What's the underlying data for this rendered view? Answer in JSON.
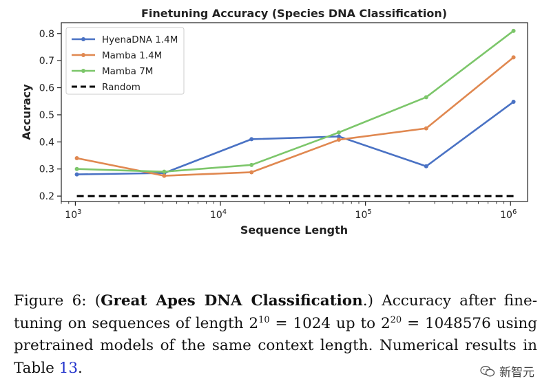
{
  "chart_data": {
    "type": "line",
    "title": "Finetuning Accuracy (Species DNA Classification)",
    "xlabel": "Sequence Length",
    "ylabel": "Accuracy",
    "xscale": "log",
    "xlim": [
      800,
      1310720
    ],
    "ylim": [
      0.18,
      0.84
    ],
    "x_ticks": [
      1000,
      10000,
      100000,
      1000000
    ],
    "x_tick_labels": [
      [
        "10",
        "3"
      ],
      [
        "10",
        "4"
      ],
      [
        "10",
        "5"
      ],
      [
        "10",
        "6"
      ]
    ],
    "y_ticks": [
      0.2,
      0.3,
      0.4,
      0.5,
      0.6,
      0.7,
      0.8
    ],
    "y_tick_labels": [
      "0.2",
      "0.3",
      "0.4",
      "0.5",
      "0.6",
      "0.7",
      "0.8"
    ],
    "x": [
      1024,
      4096,
      16384,
      65536,
      262144,
      1048576
    ],
    "series": [
      {
        "name": "HyenaDNA 1.4M",
        "color": "#4a72c4",
        "values": [
          0.28,
          0.285,
          0.41,
          0.42,
          0.31,
          0.548
        ]
      },
      {
        "name": "Mamba 1.4M",
        "color": "#e08850",
        "values": [
          0.34,
          0.275,
          0.288,
          0.408,
          0.45,
          0.712
        ]
      },
      {
        "name": "Mamba 7M",
        "color": "#7cc66a",
        "values": [
          0.3,
          0.29,
          0.315,
          0.435,
          0.565,
          0.81
        ]
      },
      {
        "name": "Random",
        "color": "#000000",
        "dashed": true,
        "values": [
          0.2,
          0.2,
          0.2,
          0.2,
          0.2,
          0.2
        ]
      }
    ],
    "legend_position": "top-left",
    "grid": false
  },
  "caption": {
    "prefix": "Figure 6: (",
    "bold": "Great Apes DNA Classification",
    "after_bold": ".) Accuracy after fine-tuning on sequences of length 2",
    "exp1": "10",
    "mid1": " = 1024 up to 2",
    "exp2": "20",
    "mid2": " = 1048576 using pretrained models of the same context length. Numerical results in Table ",
    "ref": "13",
    "suffix": "."
  },
  "watermark": "新智元"
}
